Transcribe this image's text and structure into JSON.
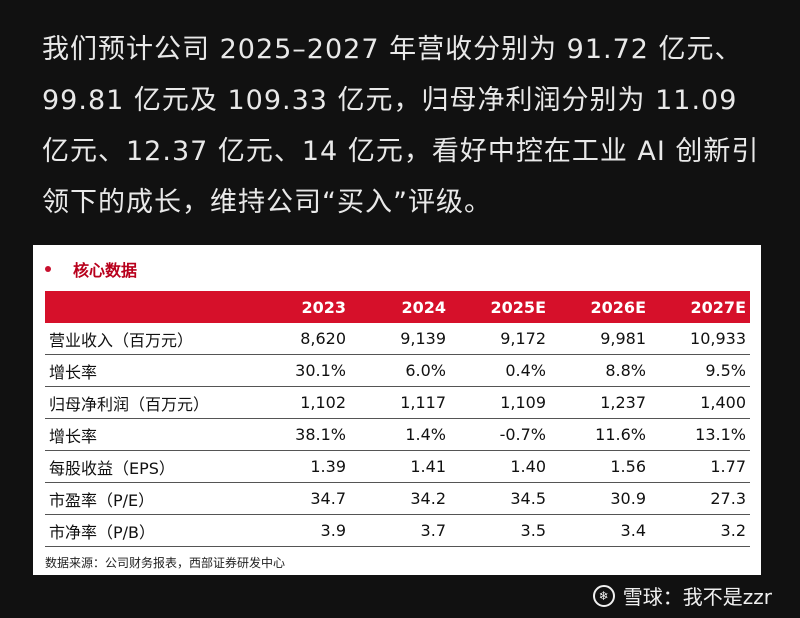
{
  "post": {
    "paragraph": "我们预计公司 2025–2027 年营收分别为 91.72 亿元、99.81 亿元及 109.33 亿元，归母净利润分别为 11.09 亿元、12.37 亿元、14 亿元，看好中控在工业 AI 创新引领下的成长，维持公司“买入”评级。"
  },
  "table_card": {
    "title": "核心数据",
    "headers": [
      "",
      "2023",
      "2024",
      "2025E",
      "2026E",
      "2027E"
    ],
    "rows": [
      [
        "营业收入（百万元）",
        "8,620",
        "9,139",
        "9,172",
        "9,981",
        "10,933"
      ],
      [
        "增长率",
        "30.1%",
        "6.0%",
        "0.4%",
        "8.8%",
        "9.5%"
      ],
      [
        "归母净利润（百万元）",
        "1,102",
        "1,117",
        "1,109",
        "1,237",
        "1,400"
      ],
      [
        "增长率",
        "38.1%",
        "1.4%",
        "-0.7%",
        "11.6%",
        "13.1%"
      ],
      [
        "每股收益（EPS）",
        "1.39",
        "1.41",
        "1.40",
        "1.56",
        "1.77"
      ],
      [
        "市盈率（P/E）",
        "34.7",
        "34.2",
        "34.5",
        "30.9",
        "27.3"
      ],
      [
        "市净率（P/B）",
        "3.9",
        "3.7",
        "3.5",
        "3.4",
        "3.2"
      ]
    ],
    "source": "数据来源：公司财务报表，西部证券研发中心"
  },
  "watermark": {
    "brand": "雪球",
    "separator": "：",
    "author": "我不是zzr",
    "logo_glyph": "❄"
  },
  "colors": {
    "background": "#111111",
    "header_red": "#d6102a",
    "title_red": "#b8001c"
  }
}
